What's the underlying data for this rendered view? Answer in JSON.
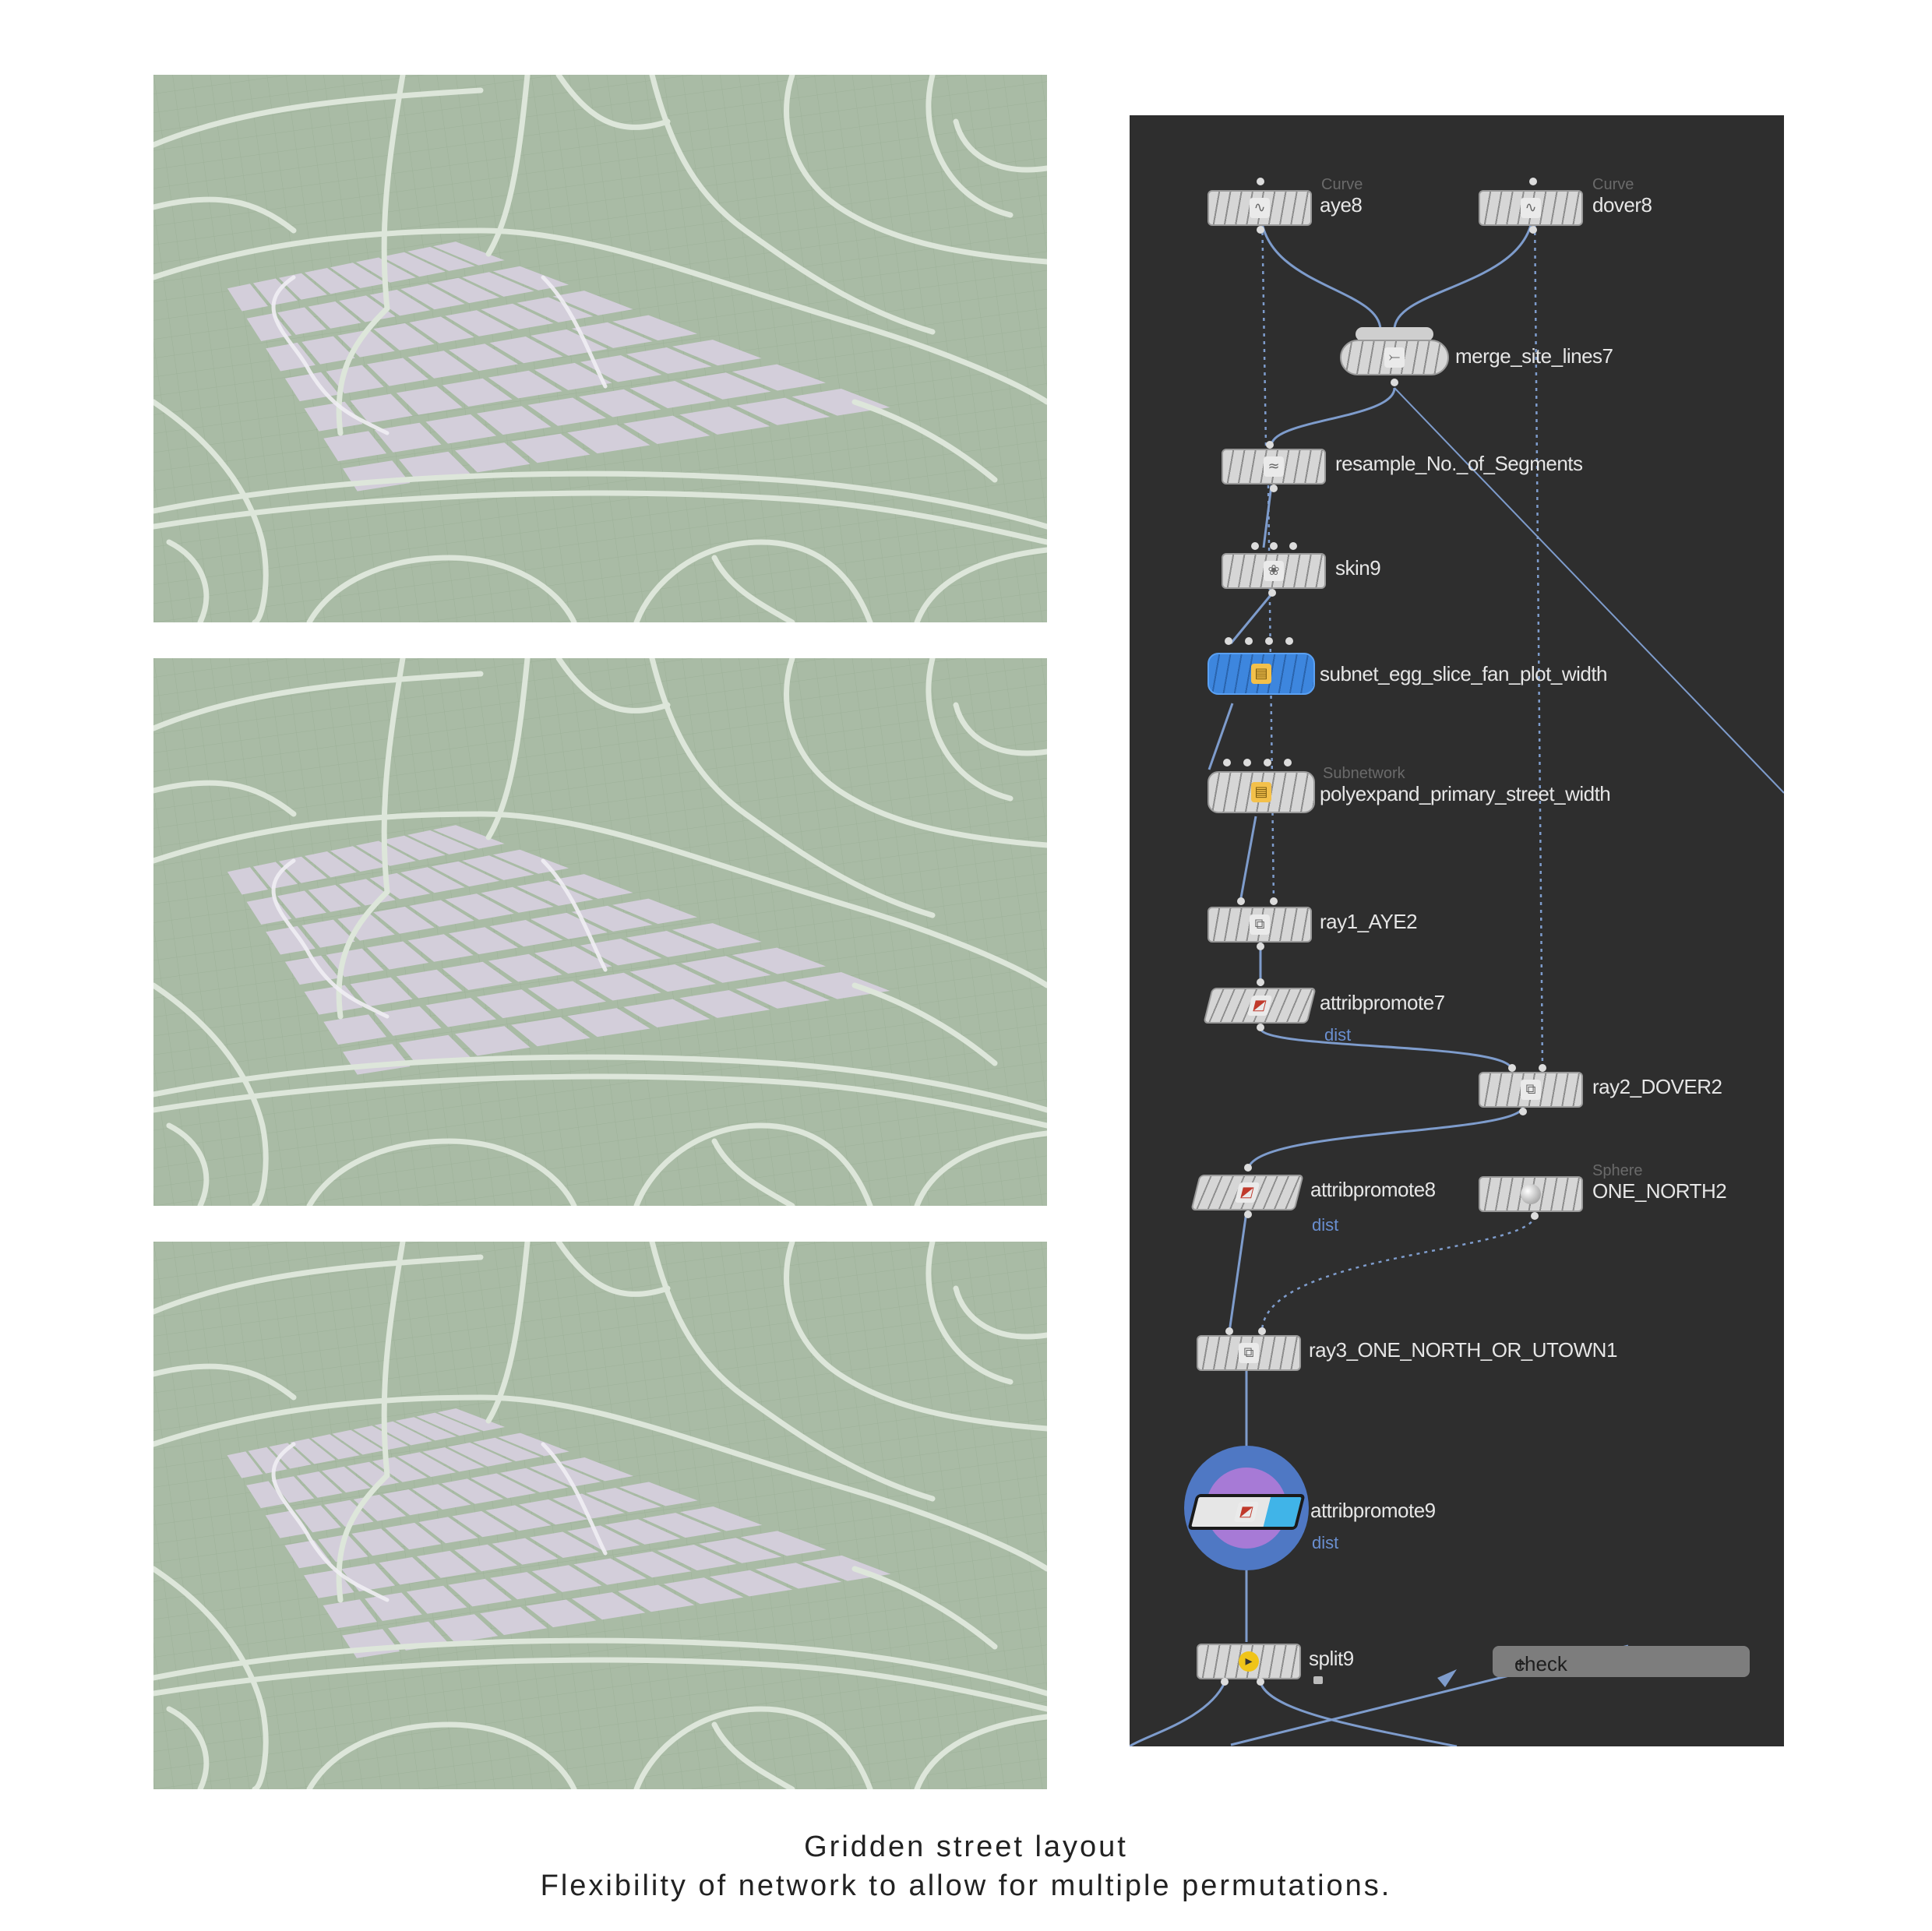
{
  "caption": {
    "line1": "Gridden street layout",
    "line2": "Flexibility of network to allow for multiple permutations."
  },
  "colors": {
    "map_bg": "#a9bba5",
    "road": "#dde6da",
    "block": "#d3ceda",
    "grid_line": "#98ad93",
    "editor_bg": "#2e2e2e",
    "wire": "#7e9ccc",
    "selected_node": "#3b7fd4"
  },
  "map_panels": [
    {
      "name": "map-variant-1",
      "grid_columns": 9
    },
    {
      "name": "map-variant-2",
      "grid_columns": 9
    },
    {
      "name": "map-variant-3",
      "grid_columns": 11
    }
  ],
  "network": {
    "nodes": [
      {
        "id": "aye8",
        "label": "aye8",
        "type": "Curve",
        "icon": "curve-icon"
      },
      {
        "id": "dover8",
        "label": "dover8",
        "type": "Curve",
        "icon": "curve-icon"
      },
      {
        "id": "merge",
        "label": "merge_site_lines7",
        "icon": "merge-icon"
      },
      {
        "id": "resample",
        "label": "resample_No._of_Segments",
        "icon": "resample-icon"
      },
      {
        "id": "skin9",
        "label": "skin9",
        "icon": "skin-icon"
      },
      {
        "id": "subnet",
        "label": "subnet_egg_slice_fan_plot_width",
        "icon": "subnet-icon"
      },
      {
        "id": "polyexpand",
        "label": "polyexpand_primary_street_width",
        "type": "Subnetwork",
        "icon": "subnet-icon"
      },
      {
        "id": "ray1",
        "label": "ray1_AYE2",
        "icon": "ray-icon"
      },
      {
        "id": "attribpromote7",
        "label": "attribpromote7",
        "sub": "dist",
        "icon": "attribpromote-icon"
      },
      {
        "id": "ray2",
        "label": "ray2_DOVER2",
        "icon": "ray-icon"
      },
      {
        "id": "attribpromote8",
        "label": "attribpromote8",
        "sub": "dist",
        "icon": "attribpromote-icon"
      },
      {
        "id": "onenorth",
        "label": "ONE_NORTH2",
        "type": "Sphere",
        "icon": "sphere-icon"
      },
      {
        "id": "ray3",
        "label": "ray3_ONE_NORTH_OR_UTOWN1",
        "icon": "ray-icon"
      },
      {
        "id": "attribpromote9",
        "label": "attribpromote9",
        "sub": "dist",
        "icon": "attribpromote-icon"
      },
      {
        "id": "split9",
        "label": "split9",
        "icon": "split-icon"
      }
    ],
    "check_button": "check"
  }
}
